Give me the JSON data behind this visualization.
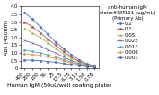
{
  "title": "anti-human IgM\nclone#RM111 (ug/mL)\n(Primary Ab)",
  "xlabel": "Human IgM (50uL/well coating plate)",
  "ylabel": "Abs (450nm)",
  "x_labels": [
    "400",
    "200",
    "100",
    "50",
    "25",
    "12.5",
    "6.25",
    "3.13",
    "1.56",
    "0.78"
  ],
  "series": [
    {
      "label": "0.2",
      "color": "#4472C4",
      "marker": "D",
      "linestyle": "-",
      "values": [
        3.6,
        3.2,
        2.7,
        2.2,
        1.7,
        1.3,
        0.9,
        0.55,
        0.3,
        0.18
      ]
    },
    {
      "label": "0.1",
      "color": "#C0504D",
      "marker": "s",
      "linestyle": "-",
      "values": [
        3.0,
        2.7,
        2.3,
        1.9,
        1.5,
        1.1,
        0.75,
        0.45,
        0.25,
        0.15
      ]
    },
    {
      "label": "0.05",
      "color": "#9BBB59",
      "marker": "^",
      "linestyle": "-",
      "values": [
        2.6,
        2.3,
        2.0,
        1.65,
        1.3,
        0.95,
        0.65,
        0.38,
        0.2,
        0.12
      ]
    },
    {
      "label": "0.025",
      "color": "#8064A2",
      "marker": "x",
      "linestyle": "-",
      "values": [
        1.8,
        1.65,
        1.45,
        1.2,
        1.0,
        0.75,
        0.5,
        0.3,
        0.16,
        0.1
      ]
    },
    {
      "label": "0.013",
      "color": "#4BACC6",
      "marker": "o",
      "linestyle": "-",
      "values": [
        1.2,
        1.1,
        1.0,
        0.88,
        0.75,
        0.58,
        0.4,
        0.25,
        0.14,
        0.09
      ]
    },
    {
      "label": "0.006",
      "color": "#F79646",
      "marker": "D",
      "linestyle": "-",
      "values": [
        0.95,
        0.9,
        0.85,
        0.75,
        0.65,
        0.5,
        0.35,
        0.22,
        0.13,
        0.08
      ]
    },
    {
      "label": "0.003",
      "color": "#4472C4",
      "marker": "s",
      "linestyle": "-",
      "values": [
        0.55,
        0.52,
        0.5,
        0.45,
        0.4,
        0.33,
        0.25,
        0.18,
        0.12,
        0.08
      ]
    }
  ],
  "ylim": [
    0,
    4.0
  ],
  "yticks": [
    0,
    0.5,
    1.0,
    1.5,
    2.0,
    2.5,
    3.0,
    3.5,
    4.0
  ],
  "background_color": "#ffffff",
  "title_fontsize": 4.0,
  "axis_fontsize": 4.5,
  "tick_fontsize": 3.8,
  "legend_fontsize": 4.0,
  "legend_title_fontsize": 4.0
}
